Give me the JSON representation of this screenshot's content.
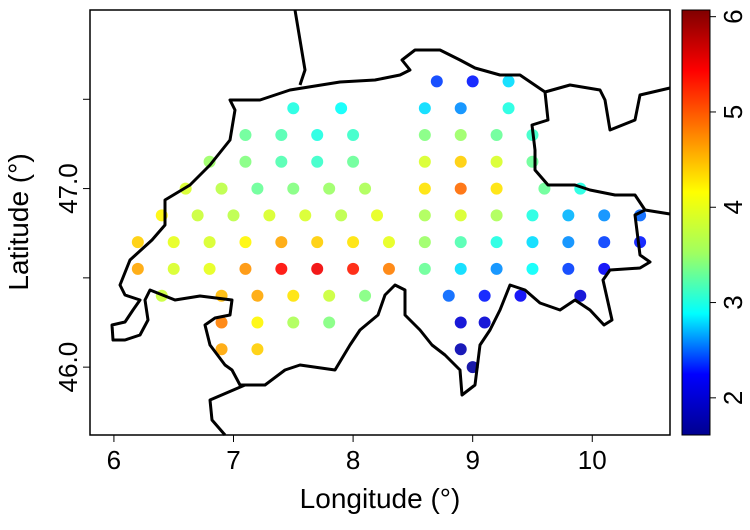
{
  "chart_data": {
    "type": "scatter",
    "x_label": "Longitude (°)",
    "y_label": "Latitude (°)",
    "xlim": [
      5.8,
      10.65
    ],
    "ylim": [
      45.62,
      48.0
    ],
    "xticks": [
      6,
      7,
      8,
      9,
      10
    ],
    "yticks": [
      {
        "value": 46,
        "label": "46.0"
      },
      {
        "value": 47,
        "label": "47.0"
      }
    ],
    "yticks_minor": [
      46.5,
      47.5
    ],
    "x": [
      8.7,
      9.0,
      9.3,
      7.5,
      7.9,
      8.6,
      8.9,
      9.3,
      7.1,
      7.4,
      7.7,
      8.0,
      8.6,
      8.9,
      9.2,
      9.5,
      6.8,
      7.1,
      7.4,
      7.7,
      8.0,
      8.6,
      8.9,
      9.2,
      9.5,
      6.6,
      6.9,
      7.2,
      7.5,
      7.8,
      8.1,
      8.6,
      8.9,
      9.2,
      9.6,
      9.9,
      6.4,
      6.7,
      7.0,
      7.3,
      7.6,
      7.9,
      8.2,
      8.6,
      8.9,
      9.2,
      9.5,
      9.8,
      10.1,
      10.4,
      6.2,
      6.5,
      6.8,
      7.1,
      7.4,
      7.7,
      8.0,
      8.3,
      8.6,
      8.9,
      9.2,
      9.5,
      9.8,
      10.1,
      10.4,
      6.2,
      6.5,
      6.8,
      7.1,
      7.4,
      7.7,
      8.0,
      8.3,
      8.6,
      8.9,
      9.2,
      9.5,
      9.8,
      10.1,
      6.4,
      6.9,
      7.2,
      7.5,
      7.8,
      8.1,
      8.8,
      9.1,
      9.4,
      9.9,
      6.9,
      7.2,
      7.5,
      7.8,
      8.9,
      9.1,
      6.9,
      7.2,
      8.9,
      9.0
    ],
    "y": [
      47.6,
      47.6,
      47.6,
      47.45,
      47.45,
      47.45,
      47.45,
      47.45,
      47.3,
      47.3,
      47.3,
      47.3,
      47.3,
      47.3,
      47.3,
      47.3,
      47.15,
      47.15,
      47.15,
      47.15,
      47.15,
      47.15,
      47.15,
      47.15,
      47.15,
      47.0,
      47.0,
      47.0,
      47.0,
      47.0,
      47.0,
      47.0,
      47.0,
      47.0,
      47.0,
      47.0,
      46.85,
      46.85,
      46.85,
      46.85,
      46.85,
      46.85,
      46.85,
      46.85,
      46.85,
      46.85,
      46.85,
      46.85,
      46.85,
      46.85,
      46.7,
      46.7,
      46.7,
      46.7,
      46.7,
      46.7,
      46.7,
      46.7,
      46.7,
      46.7,
      46.7,
      46.7,
      46.7,
      46.7,
      46.7,
      46.55,
      46.55,
      46.55,
      46.55,
      46.55,
      46.55,
      46.55,
      46.55,
      46.55,
      46.55,
      46.55,
      46.55,
      46.55,
      46.55,
      46.4,
      46.4,
      46.4,
      46.4,
      46.4,
      46.4,
      46.4,
      46.4,
      46.4,
      46.4,
      46.25,
      46.25,
      46.25,
      46.25,
      46.25,
      46.25,
      46.1,
      46.1,
      46.1,
      46.0
    ],
    "values": [
      2.4,
      2.3,
      2.8,
      3.0,
      2.9,
      2.8,
      2.6,
      3.0,
      3.3,
      3.2,
      3.0,
      3.1,
      3.4,
      3.5,
      3.3,
      3.1,
      3.5,
      3.4,
      3.2,
      3.1,
      3.3,
      3.9,
      4.4,
      3.9,
      3.3,
      3.9,
      3.7,
      3.3,
      3.4,
      3.5,
      3.6,
      4.3,
      4.9,
      4.3,
      3.3,
      3.0,
      4.2,
      3.8,
      3.7,
      3.9,
      3.9,
      3.7,
      4.0,
      3.6,
      3.9,
      3.6,
      3.0,
      2.7,
      2.6,
      2.5,
      4.4,
      4.0,
      3.9,
      4.2,
      4.6,
      4.4,
      4.3,
      4.0,
      3.5,
      3.2,
      3.0,
      2.8,
      2.6,
      2.4,
      2.3,
      4.6,
      3.9,
      4.0,
      4.7,
      5.4,
      5.5,
      5.3,
      4.8,
      3.3,
      2.8,
      2.6,
      2.9,
      2.4,
      2.2,
      3.8,
      4.5,
      4.6,
      4.3,
      3.8,
      3.4,
      2.5,
      2.3,
      2.2,
      2.0,
      4.8,
      4.2,
      3.6,
      3.4,
      2.0,
      2.0,
      4.6,
      4.4,
      1.8,
      1.7
    ],
    "colorbar": {
      "lim": [
        1.61,
        6.07
      ],
      "ticks": [
        2,
        3,
        4,
        5,
        6
      ],
      "colors": [
        "#00008f",
        "#0000ff",
        "#00ffff",
        "#a0ff60",
        "#ffff00",
        "#ff7f00",
        "#ff0000",
        "#800000"
      ]
    }
  }
}
